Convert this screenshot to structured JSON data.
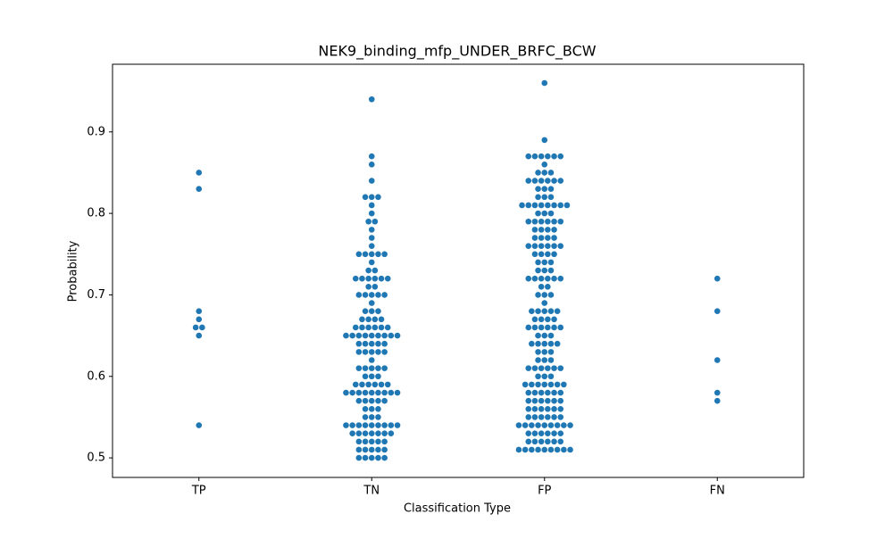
{
  "chart_data": {
    "type": "swarm",
    "title": "NEK9_binding_mfp_UNDER_BRFC_BCW",
    "xlabel": "Classification Type",
    "ylabel": "Probability",
    "color": "#1f77b4",
    "categories": [
      "TP",
      "TN",
      "FP",
      "FN"
    ],
    "values": [
      [
        0.85,
        0.83,
        0.68,
        0.67,
        0.66,
        0.66,
        0.65,
        0.54
      ],
      [
        0.94,
        0.87,
        0.86,
        0.84,
        0.82,
        0.82,
        0.82,
        0.81,
        0.8,
        0.79,
        0.79,
        0.78,
        0.77,
        0.76,
        0.75,
        0.75,
        0.75,
        0.75,
        0.75,
        0.74,
        0.73,
        0.73,
        0.72,
        0.72,
        0.72,
        0.72,
        0.72,
        0.72,
        0.71,
        0.71,
        0.7,
        0.7,
        0.7,
        0.7,
        0.7,
        0.69,
        0.68,
        0.68,
        0.68,
        0.67,
        0.67,
        0.67,
        0.67,
        0.66,
        0.66,
        0.66,
        0.66,
        0.66,
        0.66,
        0.65,
        0.65,
        0.65,
        0.65,
        0.65,
        0.65,
        0.65,
        0.65,
        0.65,
        0.64,
        0.64,
        0.64,
        0.64,
        0.64,
        0.63,
        0.63,
        0.63,
        0.63,
        0.63,
        0.62,
        0.61,
        0.61,
        0.61,
        0.61,
        0.61,
        0.6,
        0.6,
        0.6,
        0.59,
        0.59,
        0.59,
        0.59,
        0.59,
        0.59,
        0.58,
        0.58,
        0.58,
        0.58,
        0.58,
        0.58,
        0.58,
        0.58,
        0.58,
        0.57,
        0.57,
        0.57,
        0.57,
        0.57,
        0.56,
        0.56,
        0.56,
        0.55,
        0.55,
        0.55,
        0.54,
        0.54,
        0.54,
        0.54,
        0.54,
        0.54,
        0.54,
        0.54,
        0.54,
        0.53,
        0.53,
        0.53,
        0.53,
        0.53,
        0.53,
        0.53,
        0.52,
        0.52,
        0.52,
        0.52,
        0.52,
        0.51,
        0.51,
        0.51,
        0.51,
        0.51,
        0.5,
        0.5,
        0.5,
        0.5,
        0.5
      ],
      [
        0.96,
        0.89,
        0.87,
        0.87,
        0.87,
        0.87,
        0.87,
        0.87,
        0.86,
        0.85,
        0.85,
        0.85,
        0.84,
        0.84,
        0.84,
        0.84,
        0.84,
        0.84,
        0.83,
        0.83,
        0.83,
        0.82,
        0.82,
        0.82,
        0.81,
        0.81,
        0.81,
        0.81,
        0.81,
        0.81,
        0.81,
        0.81,
        0.8,
        0.8,
        0.8,
        0.79,
        0.79,
        0.79,
        0.79,
        0.79,
        0.79,
        0.78,
        0.78,
        0.78,
        0.78,
        0.77,
        0.77,
        0.77,
        0.77,
        0.76,
        0.76,
        0.76,
        0.76,
        0.76,
        0.76,
        0.75,
        0.75,
        0.75,
        0.75,
        0.74,
        0.74,
        0.74,
        0.73,
        0.73,
        0.73,
        0.72,
        0.72,
        0.72,
        0.72,
        0.72,
        0.72,
        0.71,
        0.71,
        0.7,
        0.7,
        0.7,
        0.69,
        0.68,
        0.68,
        0.68,
        0.68,
        0.68,
        0.67,
        0.67,
        0.67,
        0.67,
        0.66,
        0.66,
        0.66,
        0.66,
        0.66,
        0.66,
        0.65,
        0.65,
        0.65,
        0.64,
        0.64,
        0.64,
        0.64,
        0.64,
        0.63,
        0.63,
        0.63,
        0.62,
        0.62,
        0.62,
        0.61,
        0.61,
        0.61,
        0.61,
        0.61,
        0.61,
        0.6,
        0.6,
        0.6,
        0.59,
        0.59,
        0.59,
        0.59,
        0.59,
        0.59,
        0.59,
        0.58,
        0.58,
        0.58,
        0.58,
        0.58,
        0.58,
        0.57,
        0.57,
        0.57,
        0.57,
        0.57,
        0.57,
        0.56,
        0.56,
        0.56,
        0.56,
        0.56,
        0.56,
        0.55,
        0.55,
        0.55,
        0.55,
        0.55,
        0.55,
        0.54,
        0.54,
        0.54,
        0.54,
        0.54,
        0.54,
        0.54,
        0.54,
        0.54,
        0.53,
        0.53,
        0.53,
        0.53,
        0.53,
        0.53,
        0.52,
        0.52,
        0.52,
        0.52,
        0.52,
        0.52,
        0.51,
        0.51,
        0.51,
        0.51,
        0.51,
        0.51,
        0.51,
        0.51,
        0.51
      ],
      [
        0.72,
        0.68,
        0.62,
        0.58,
        0.57
      ]
    ],
    "ylim": [
      0.476,
      0.983
    ],
    "yticks": [
      0.5,
      0.6,
      0.7,
      0.8,
      0.9
    ],
    "grid": false
  }
}
